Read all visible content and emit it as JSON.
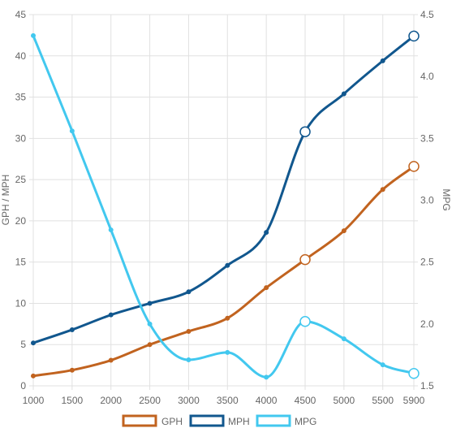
{
  "chart_data": {
    "type": "line",
    "x": [
      1000,
      1500,
      2000,
      2500,
      3000,
      3500,
      4000,
      4500,
      5000,
      5500,
      5900
    ],
    "x_ticks": [
      "1000",
      "1500",
      "2000",
      "2500",
      "3000",
      "3500",
      "4000",
      "4500",
      "5000",
      "5500",
      "5900"
    ],
    "y_left": {
      "label": "GPH / MPH",
      "range": [
        0,
        45
      ],
      "ticks": [
        "0",
        "5",
        "10",
        "15",
        "20",
        "25",
        "30",
        "35",
        "40",
        "45"
      ]
    },
    "y_right": {
      "label": "MPG",
      "range": [
        1.5,
        4.5
      ],
      "ticks": [
        "1.5",
        "2.0",
        "2.5",
        "3.0",
        "3.5",
        "4.0",
        "4.5"
      ]
    },
    "grid": true,
    "legend_position": "bottom",
    "series": [
      {
        "name": "GPH",
        "axis": "left",
        "color": "#c1631f",
        "values": [
          1.2,
          1.9,
          3.1,
          5.0,
          6.6,
          8.2,
          11.9,
          15.3,
          18.8,
          23.8,
          26.6
        ],
        "highlight_indices": [
          7,
          10
        ]
      },
      {
        "name": "MPH",
        "axis": "left",
        "color": "#11578e",
        "values": [
          5.2,
          6.8,
          8.6,
          10.0,
          11.4,
          14.6,
          18.6,
          30.8,
          35.4,
          39.4,
          42.4
        ],
        "highlight_indices": [
          7,
          10
        ]
      },
      {
        "name": "MPG",
        "axis": "right",
        "color": "#42c8ef",
        "values": [
          4.33,
          3.56,
          2.76,
          2.0,
          1.71,
          1.77,
          1.57,
          2.02,
          1.88,
          1.67,
          1.6
        ],
        "highlight_indices": [
          7,
          10
        ]
      }
    ]
  }
}
